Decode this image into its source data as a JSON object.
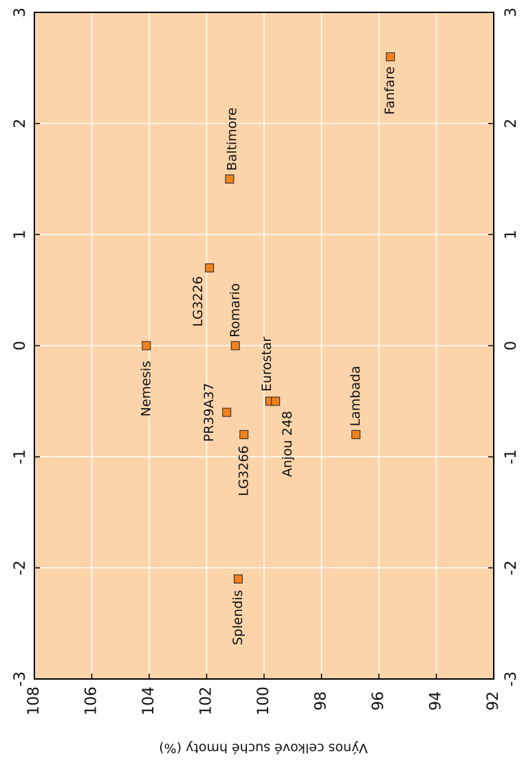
{
  "chart_data": {
    "type": "scatter",
    "x_label": "Výnos celkové suché hmoty (%)",
    "xlim": [
      108,
      92
    ],
    "xticks": [
      108,
      106,
      104,
      102,
      100,
      98,
      96,
      94,
      92
    ],
    "ylim": [
      -3,
      3
    ],
    "yticks": [
      -3,
      -2,
      -1,
      0,
      1,
      2,
      3
    ],
    "grid": true,
    "background": "#fcd4aa",
    "grid_color": "#ffffff",
    "series": [
      {
        "color": "#f0811f",
        "labels": [
          "Nemesis",
          "Baltimore",
          "LG3226",
          "Romario",
          "Eurostar",
          "Anjou 248",
          "PR39A37",
          "LG3266",
          "Splendis",
          "Lambada",
          "Fanfare"
        ],
        "x": [
          104.1,
          101.2,
          101.9,
          101.0,
          99.8,
          99.6,
          101.3,
          100.7,
          100.9,
          96.8,
          95.6
        ],
        "values": [
          0,
          1.5,
          0.7,
          0,
          -0.5,
          -0.5,
          -0.6,
          -0.8,
          -2.1,
          -0.8,
          2.6
        ]
      }
    ]
  }
}
